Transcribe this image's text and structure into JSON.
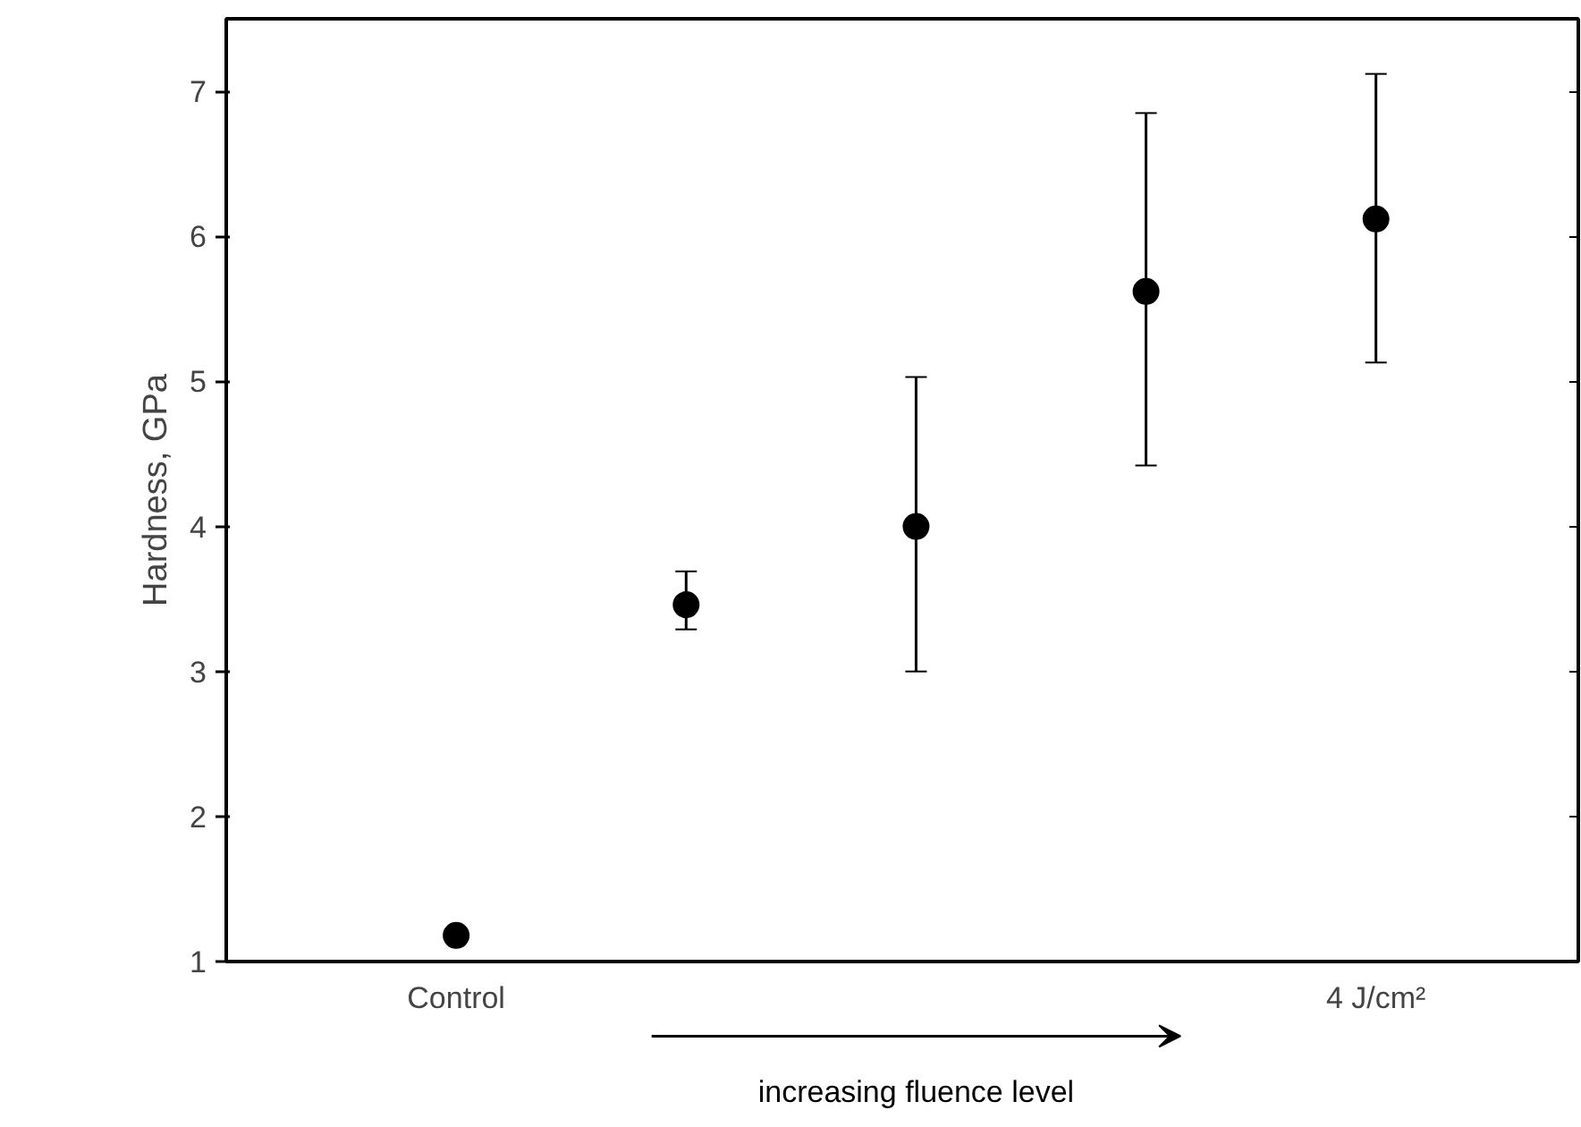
{
  "chart_data": {
    "type": "scatter",
    "ylabel": "Hardness, GPa",
    "xlabel": "increasing fluence level",
    "categories": [
      "Control",
      null,
      null,
      null,
      "4 J/cm²"
    ],
    "series": [
      {
        "color": "#000000",
        "values": [
          1.18,
          3.46,
          4.0,
          5.62,
          6.12
        ],
        "errors": [
          null,
          [
            3.29,
            3.69
          ],
          [
            3.0,
            5.03
          ],
          [
            4.42,
            6.85
          ],
          [
            5.13,
            7.12
          ]
        ]
      }
    ],
    "ylim": [
      1,
      7.5
    ],
    "yticks": [
      1,
      2,
      3,
      4,
      5,
      6,
      7
    ],
    "marker": "circle",
    "grid": false
  }
}
